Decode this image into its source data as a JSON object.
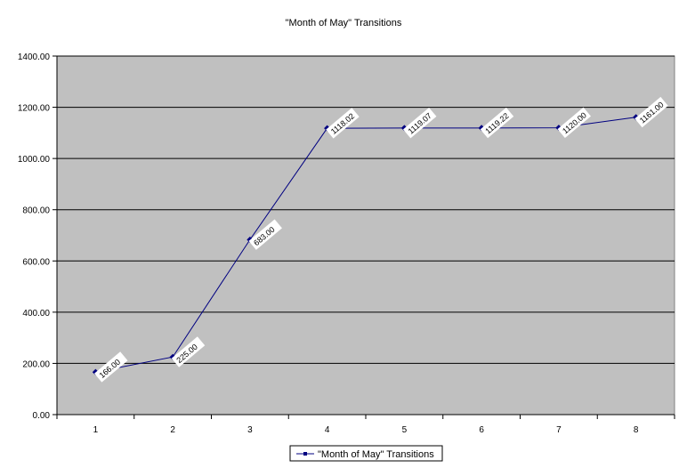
{
  "chart_data": {
    "type": "line",
    "title": "\"Month of May\" Transitions",
    "categories": [
      "1",
      "2",
      "3",
      "4",
      "5",
      "6",
      "7",
      "8"
    ],
    "series": [
      {
        "name": "\"Month of May\" Transitions",
        "values": [
          166.0,
          225.0,
          683.0,
          1118.02,
          1119.07,
          1119.22,
          1120.0,
          1161.0
        ],
        "labels": [
          "166.00",
          "225.00",
          "683.00",
          "1118.02",
          "1119.07",
          "1119.22",
          "1120.00",
          "1161.00"
        ]
      }
    ],
    "ylim": [
      0,
      1400
    ],
    "yticks": [
      0,
      200,
      400,
      600,
      800,
      1000,
      1200,
      1400
    ],
    "ytick_labels": [
      "0.00",
      "200.00",
      "400.00",
      "600.00",
      "800.00",
      "1000.00",
      "1200.00",
      "1400.00"
    ],
    "grid": true,
    "legend": "bottom-center",
    "colors": {
      "plot_background": "#c0c0c0",
      "series_line": "#000080",
      "gridline": "#000000"
    }
  }
}
